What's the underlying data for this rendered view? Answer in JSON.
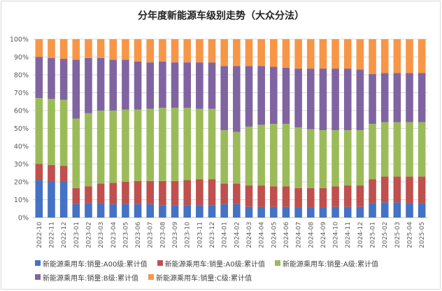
{
  "chart_data": {
    "type": "bar",
    "stacked": "percent",
    "title": "分年度新能源车级别走势（大众分法）",
    "categories": [
      "2022-10",
      "2022-11",
      "2022-12",
      "2023-01",
      "2023-02",
      "2023-03",
      "2023-04",
      "2023-05",
      "2023-06",
      "2023-07",
      "2023-08",
      "2023-09",
      "2023-10",
      "2023-11",
      "2023-12",
      "2024-01",
      "2024-02",
      "2024-03",
      "2024-04",
      "2024-05",
      "2024-06",
      "2024-07",
      "2024-08",
      "2024-09",
      "2024-10",
      "2024-11",
      "2024-12",
      "2025-01",
      "2025-02",
      "2025-03",
      "2025-04",
      "2025-05"
    ],
    "y_tick_labels": [
      "0%",
      "10%",
      "20%",
      "30%",
      "40%",
      "50%",
      "60%",
      "70%",
      "80%",
      "90%",
      "100%"
    ],
    "ylim": [
      0,
      100
    ],
    "grid": true,
    "legend_position": "bottom",
    "series": [
      {
        "name": "新能源乘用车:销量:A00级:累计值",
        "color": "#4472c4",
        "values": [
          21,
          20,
          20,
          7.5,
          8,
          8,
          7.5,
          7.5,
          7.5,
          7.5,
          7,
          7,
          7,
          7,
          7,
          7.5,
          7.5,
          6,
          6,
          6,
          6,
          5.5,
          5.5,
          5.5,
          6,
          6,
          6,
          8,
          8.5,
          8.5,
          8,
          8
        ]
      },
      {
        "name": "新能源乘用车:销量:A0级:累计值",
        "color": "#c0504d",
        "values": [
          9,
          9.5,
          9,
          9,
          9.5,
          11,
          12,
          12.5,
          13,
          13,
          13.5,
          13.5,
          14,
          14.5,
          14.5,
          11.5,
          11.5,
          12,
          12,
          11.5,
          11.5,
          11,
          11,
          11,
          11.5,
          12,
          12,
          13.5,
          14.5,
          14.5,
          15,
          15
        ]
      },
      {
        "name": "新能源乘用车:销量:A级:累计值",
        "color": "#9bbb59",
        "values": [
          37,
          37,
          37,
          39,
          41,
          41,
          40.5,
          40.5,
          40,
          40.5,
          41,
          41,
          40.5,
          39.5,
          39.5,
          30,
          29,
          33,
          34,
          35,
          35,
          34,
          33,
          32.5,
          31.5,
          31,
          31,
          31,
          30.5,
          30.5,
          30.5,
          30.5
        ]
      },
      {
        "name": "新能源乘用车:销量:B级:累计值",
        "color": "#8064a2",
        "values": [
          23,
          23,
          23,
          33,
          31,
          29.5,
          28.5,
          28,
          27,
          26,
          26,
          25.5,
          25.5,
          26,
          26,
          36,
          37,
          34,
          33,
          32,
          31.5,
          33,
          34,
          34.5,
          34.5,
          34.5,
          34,
          28,
          27.5,
          27.5,
          27.5,
          27.5
        ]
      },
      {
        "name": "新能源乘用车:销量:C级:累计值",
        "color": "#f79646",
        "values": [
          10,
          10.5,
          11,
          11.5,
          10.5,
          10.5,
          11.5,
          11.5,
          12.5,
          13,
          12.5,
          13,
          13,
          13,
          13,
          15,
          15,
          15,
          15,
          15.5,
          16,
          16.5,
          16.5,
          16.5,
          16.5,
          16.5,
          17,
          19.5,
          19,
          19,
          19,
          19
        ]
      }
    ]
  }
}
